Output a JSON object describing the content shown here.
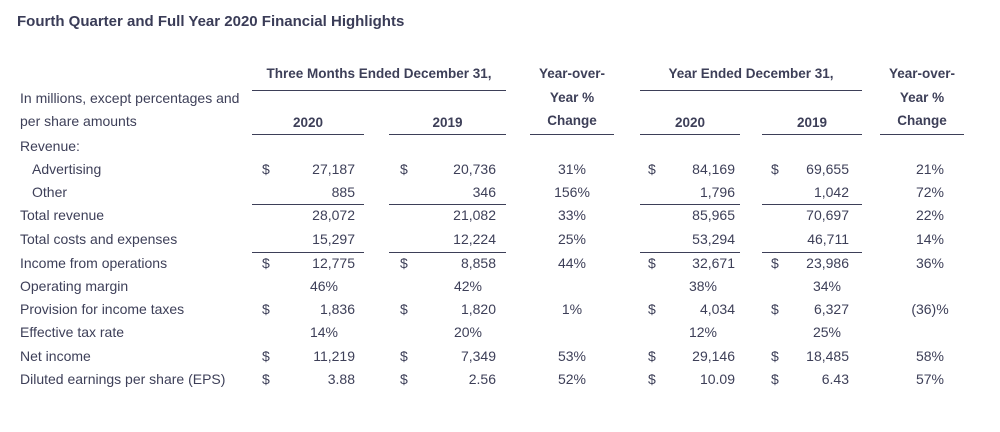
{
  "title": "Fourth Quarter and Full Year 2020 Financial Highlights",
  "header": {
    "three_months": "Three Months Ended December 31,",
    "year_ended": "Year Ended December 31,",
    "yoy_line1": "Year-over-",
    "yoy_line2": "Year %",
    "yoy_line3": "Change",
    "desc_line1": "In millions, except percentages and",
    "desc_line2": "per share amounts",
    "y2020": "2020",
    "y2019": "2019"
  },
  "rows": [
    {
      "label": "Revenue:"
    },
    {
      "label": "Advertising",
      "q20": "27,187",
      "q19": "20,736",
      "qch": "31%",
      "y20": "84,169",
      "y19": "69,655",
      "ych": "21%"
    },
    {
      "label": "Other",
      "q20": "885",
      "q19": "346",
      "qch": "156%",
      "y20": "1,796",
      "y19": "1,042",
      "ych": "72%"
    },
    {
      "label": "Total revenue",
      "q20": "28,072",
      "q19": "21,082",
      "qch": "33%",
      "y20": "85,965",
      "y19": "70,697",
      "ych": "22%"
    },
    {
      "label": "Total costs and expenses",
      "q20": "15,297",
      "q19": "12,224",
      "qch": "25%",
      "y20": "53,294",
      "y19": "46,711",
      "ych": "14%"
    },
    {
      "label": "Income from operations",
      "q20": "12,775",
      "q19": "8,858",
      "qch": "44%",
      "y20": "32,671",
      "y19": "23,986",
      "ych": "36%"
    },
    {
      "label": "Operating margin",
      "q20": "46%",
      "q19": "42%",
      "y20": "38%",
      "y19": "34%"
    },
    {
      "label": "Provision for income taxes",
      "q20": "1,836",
      "q19": "1,820",
      "qch": "1%",
      "y20": "4,034",
      "y19": "6,327",
      "ych": "(36)%"
    },
    {
      "label": "Effective tax rate",
      "q20": "14%",
      "q19": "20%",
      "y20": "12%",
      "y19": "25%"
    },
    {
      "label": "Net income",
      "q20": "11,219",
      "q19": "7,349",
      "qch": "53%",
      "y20": "29,146",
      "y19": "18,485",
      "ych": "58%"
    },
    {
      "label": "Diluted earnings per share (EPS)",
      "q20": "3.88",
      "q19": "2.56",
      "qch": "52%",
      "y20": "10.09",
      "y19": "6.43",
      "ych": "57%"
    }
  ],
  "currency_symbol": "$"
}
